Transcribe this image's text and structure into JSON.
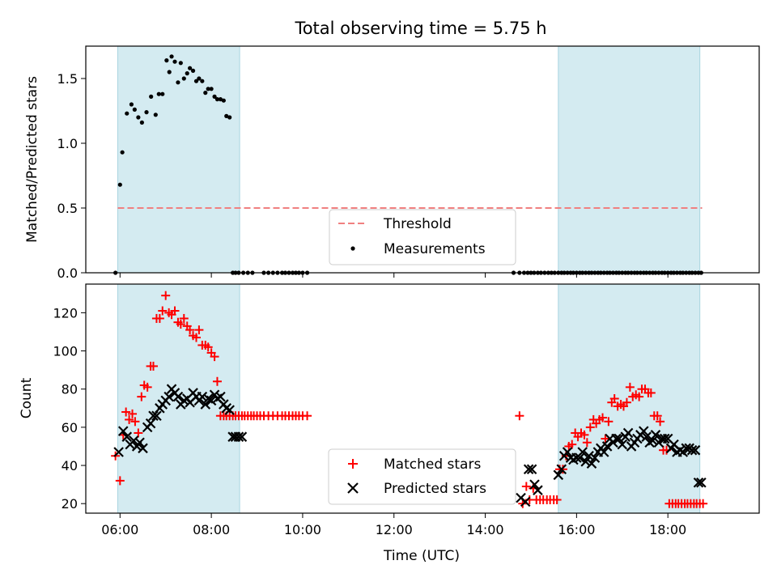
{
  "chart_data": [
    {
      "type": "scatter",
      "title": "Total observing time = 5.75 h",
      "ylabel": "Matched/Predicted stars",
      "xlabel": "",
      "xlim": [
        5.25,
        20.0
      ],
      "ylim": [
        0,
        1.75
      ],
      "x_ticks": [
        6,
        8,
        10,
        12,
        14,
        16,
        18
      ],
      "x_tick_labels": [],
      "y_ticks": [
        0,
        0.5,
        1.0,
        1.5
      ],
      "y_tick_labels": [
        "0.0",
        "0.5",
        "1.0",
        "1.5"
      ],
      "shaded_intervals": [
        [
          5.95,
          8.62
        ],
        [
          15.6,
          18.7
        ]
      ],
      "shade_color": "#d4ebf1",
      "threshold": {
        "name": "Threshold",
        "value": 0.5,
        "color": "#f08080"
      },
      "legend": {
        "position": "lower-center",
        "entries": [
          "Threshold",
          "Measurements"
        ]
      },
      "series": [
        {
          "name": "Measurements",
          "marker": "dot",
          "color": "#000000",
          "x": [
            5.9,
            6.0,
            6.05,
            6.15,
            6.25,
            6.32,
            6.4,
            6.48,
            6.58,
            6.68,
            6.78,
            6.85,
            6.93,
            7.02,
            7.08,
            7.13,
            7.2,
            7.27,
            7.33,
            7.4,
            7.47,
            7.53,
            7.6,
            7.67,
            7.73,
            7.8,
            7.87,
            7.93,
            8.0,
            8.07,
            8.13,
            8.2,
            8.27,
            8.33,
            8.4,
            8.47,
            8.53,
            8.6,
            8.7,
            8.8,
            8.9,
            9.15,
            9.25,
            9.35,
            9.45,
            9.55,
            9.62,
            9.7,
            9.78,
            9.85,
            9.92,
            10.0,
            10.1,
            14.62,
            14.75,
            14.85,
            14.93,
            15.0,
            15.07,
            15.15,
            15.22,
            15.3,
            15.38,
            15.45,
            15.52,
            15.6,
            15.67,
            15.73,
            15.8,
            15.87,
            15.93,
            16.0,
            16.07,
            16.13,
            16.2,
            16.27,
            16.33,
            16.4,
            16.47,
            16.53,
            16.6,
            16.67,
            16.73,
            16.8,
            16.87,
            16.93,
            17.0,
            17.07,
            17.13,
            17.2,
            17.27,
            17.33,
            17.4,
            17.47,
            17.53,
            17.6,
            17.67,
            17.73,
            17.8,
            17.87,
            17.93,
            18.0,
            18.07,
            18.13,
            18.2,
            18.27,
            18.33,
            18.4,
            18.47,
            18.53,
            18.6,
            18.67,
            18.73
          ],
          "y": [
            0.0,
            0.68,
            0.93,
            1.23,
            1.3,
            1.26,
            1.2,
            1.16,
            1.24,
            1.36,
            1.22,
            1.38,
            1.38,
            1.64,
            1.55,
            1.67,
            1.63,
            1.47,
            1.62,
            1.5,
            1.54,
            1.58,
            1.56,
            1.48,
            1.5,
            1.48,
            1.39,
            1.42,
            1.42,
            1.36,
            1.34,
            1.34,
            1.33,
            1.21,
            1.2,
            0.0,
            0.0,
            0.0,
            0.0,
            0.0,
            0.0,
            0.0,
            0.0,
            0.0,
            0.0,
            0.0,
            0.0,
            0.0,
            0.0,
            0.0,
            0.0,
            0.0,
            0.0,
            0.0,
            0.0,
            0.0,
            0.0,
            0.0,
            0.0,
            0.0,
            0.0,
            0.0,
            0.0,
            0.0,
            0.0,
            0.0,
            0.0,
            0.0,
            0.0,
            0.0,
            0.0,
            0.0,
            0.0,
            0.0,
            0.0,
            0.0,
            0.0,
            0.0,
            0.0,
            0.0,
            0.0,
            0.0,
            0.0,
            0.0,
            0.0,
            0.0,
            0.0,
            0.0,
            0.0,
            0.0,
            0.0,
            0.0,
            0.0,
            0.0,
            0.0,
            0.0,
            0.0,
            0.0,
            0.0,
            0.0,
            0.0,
            0.0,
            0.0,
            0.0,
            0.0,
            0.0,
            0.0,
            0.0,
            0.0,
            0.0,
            0.0,
            0.0,
            0.0
          ]
        }
      ]
    },
    {
      "type": "scatter",
      "title": "",
      "ylabel": "Count",
      "xlabel": "Time (UTC)",
      "xlim": [
        5.25,
        20.0
      ],
      "ylim": [
        15,
        135
      ],
      "x_ticks": [
        6,
        8,
        10,
        12,
        14,
        16,
        18
      ],
      "x_tick_labels": [
        "06:00",
        "08:00",
        "10:00",
        "12:00",
        "14:00",
        "16:00",
        "18:00"
      ],
      "y_ticks": [
        20,
        40,
        60,
        80,
        100,
        120
      ],
      "y_tick_labels": [
        "20",
        "40",
        "60",
        "80",
        "100",
        "120"
      ],
      "shaded_intervals": [
        [
          5.95,
          8.62
        ],
        [
          15.6,
          18.7
        ]
      ],
      "shade_color": "#d4ebf1",
      "legend": {
        "position": "lower-center",
        "entries": [
          "Matched stars",
          "Predicted stars"
        ]
      },
      "series": [
        {
          "name": "Matched stars",
          "marker": "plus",
          "color": "#ff0000",
          "x": [
            5.9,
            6.0,
            6.07,
            6.13,
            6.2,
            6.27,
            6.33,
            6.4,
            6.47,
            6.53,
            6.6,
            6.67,
            6.73,
            6.8,
            6.87,
            6.93,
            7.0,
            7.07,
            7.13,
            7.2,
            7.27,
            7.33,
            7.4,
            7.47,
            7.53,
            7.6,
            7.67,
            7.73,
            7.8,
            7.87,
            7.93,
            8.0,
            8.07,
            8.13,
            8.2,
            8.27,
            8.33,
            8.4,
            8.47,
            8.53,
            8.6,
            8.67,
            8.73,
            8.8,
            8.87,
            8.93,
            9.0,
            9.07,
            9.15,
            9.25,
            9.35,
            9.45,
            9.55,
            9.62,
            9.7,
            9.78,
            9.85,
            9.92,
            10.0,
            10.1,
            14.75,
            14.82,
            14.9,
            14.97,
            15.05,
            15.12,
            15.2,
            15.27,
            15.35,
            15.42,
            15.5,
            15.57,
            15.63,
            15.7,
            15.77,
            15.83,
            15.9,
            15.97,
            16.03,
            16.1,
            16.17,
            16.23,
            16.3,
            16.37,
            16.43,
            16.5,
            16.57,
            16.63,
            16.7,
            16.77,
            16.83,
            16.9,
            16.97,
            17.03,
            17.1,
            17.17,
            17.23,
            17.3,
            17.37,
            17.43,
            17.5,
            17.57,
            17.63,
            17.7,
            17.77,
            17.83,
            17.9,
            17.97,
            18.03,
            18.1,
            18.17,
            18.23,
            18.3,
            18.37,
            18.43,
            18.5,
            18.57,
            18.63,
            18.7,
            18.77
          ],
          "y": [
            45,
            32,
            56,
            68,
            64,
            67,
            63,
            57,
            76,
            82,
            81,
            92,
            92,
            117,
            117,
            121,
            129,
            120,
            119,
            121,
            115,
            114,
            117,
            113,
            111,
            108,
            107,
            111,
            103,
            103,
            102,
            99,
            97,
            84,
            66,
            66,
            66,
            66,
            66,
            66,
            66,
            66,
            66,
            66,
            66,
            66,
            66,
            66,
            66,
            66,
            66,
            66,
            66,
            66,
            66,
            66,
            66,
            66,
            66,
            66,
            66,
            20,
            29,
            22,
            28,
            22,
            22,
            22,
            22,
            22,
            22,
            22,
            38,
            38,
            45,
            50,
            51,
            57,
            55,
            57,
            56,
            52,
            60,
            64,
            62,
            64,
            65,
            54,
            63,
            73,
            75,
            71,
            72,
            71,
            73,
            81,
            76,
            77,
            76,
            80,
            80,
            78,
            78,
            66,
            66,
            63,
            48,
            48,
            20,
            20,
            20,
            20,
            20,
            20,
            20,
            20,
            20,
            20,
            20,
            20
          ],
          "x_fix": true
        },
        {
          "name": "Predicted stars",
          "marker": "x",
          "color": "#000000",
          "x": [
            5.97,
            6.07,
            6.15,
            6.22,
            6.3,
            6.37,
            6.43,
            6.5,
            6.6,
            6.67,
            6.73,
            6.8,
            6.87,
            6.93,
            7.0,
            7.07,
            7.13,
            7.2,
            7.27,
            7.33,
            7.4,
            7.47,
            7.53,
            7.6,
            7.67,
            7.73,
            7.8,
            7.87,
            7.93,
            8.0,
            8.07,
            8.13,
            8.2,
            8.27,
            8.33,
            8.4,
            8.47,
            8.53,
            8.6,
            8.67,
            14.78,
            14.88,
            14.95,
            15.02,
            15.08,
            15.15,
            15.6,
            15.67,
            15.73,
            15.8,
            15.87,
            15.93,
            16.0,
            16.07,
            16.13,
            16.2,
            16.27,
            16.33,
            16.4,
            16.47,
            16.53,
            16.6,
            16.67,
            16.73,
            16.8,
            16.87,
            16.93,
            17.0,
            17.07,
            17.13,
            17.2,
            17.27,
            17.33,
            17.4,
            17.47,
            17.53,
            17.6,
            17.67,
            17.73,
            17.8,
            17.87,
            17.93,
            18.0,
            18.07,
            18.13,
            18.2,
            18.27,
            18.33,
            18.4,
            18.47,
            18.53,
            18.6,
            18.67,
            18.73
          ],
          "y": [
            47,
            58,
            55,
            51,
            53,
            50,
            52,
            49,
            60,
            62,
            66,
            66,
            70,
            72,
            74,
            76,
            80,
            78,
            76,
            72,
            74,
            75,
            73,
            78,
            76,
            74,
            76,
            72,
            75,
            74,
            77,
            75,
            76,
            72,
            70,
            69,
            55,
            55,
            55,
            55,
            23,
            21,
            38,
            38,
            30,
            27,
            35,
            38,
            45,
            47,
            44,
            43,
            44,
            44,
            47,
            42,
            45,
            41,
            44,
            47,
            49,
            47,
            50,
            54,
            52,
            54,
            54,
            51,
            55,
            57,
            50,
            52,
            54,
            56,
            58,
            55,
            52,
            53,
            56,
            52,
            54,
            54,
            54,
            49,
            51,
            47,
            48,
            47,
            49,
            49,
            48,
            48,
            31,
            31
          ]
        }
      ]
    }
  ]
}
